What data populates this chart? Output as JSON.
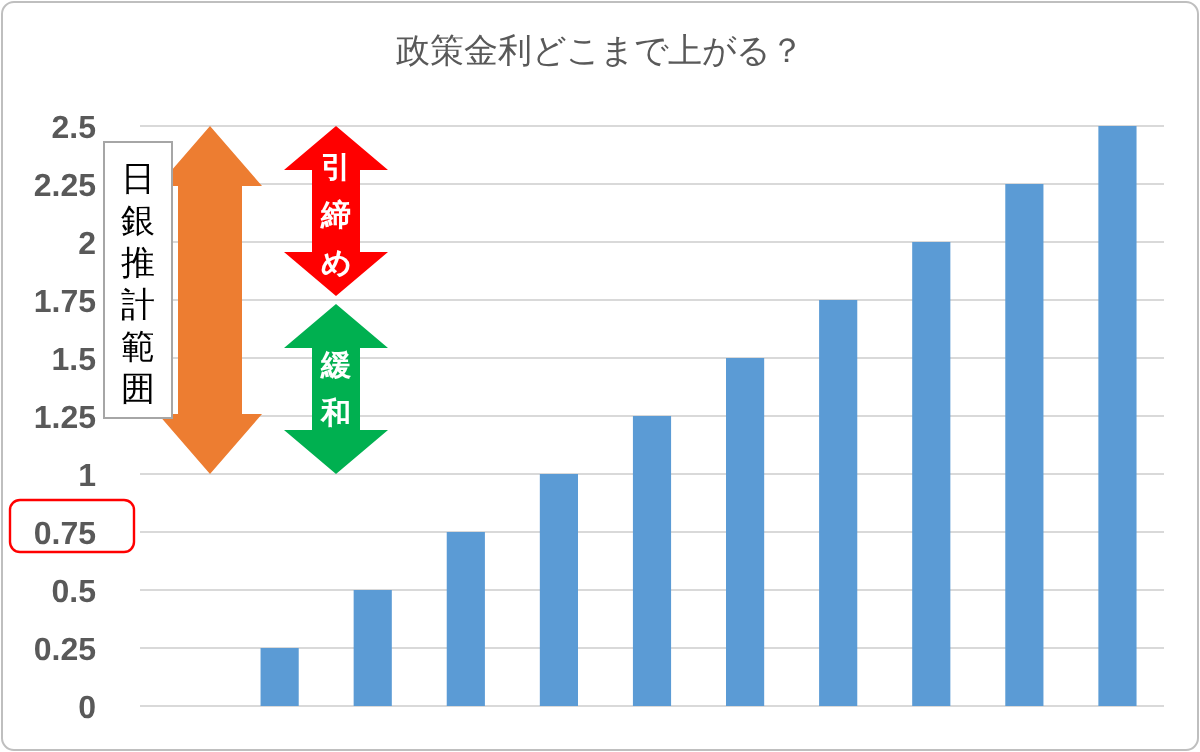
{
  "chart_data": {
    "type": "bar",
    "title": "政策金利どこまで上がる？",
    "categories": [
      null,
      null,
      null,
      null,
      null,
      null,
      null,
      null,
      null,
      null,
      null
    ],
    "values": [
      null,
      0.25,
      0.5,
      0.75,
      1,
      1.25,
      1.5,
      1.75,
      2,
      2.25,
      2.5
    ],
    "color": "#5b9bd5",
    "ylim": [
      0,
      2.5
    ],
    "yticks": [
      0,
      0.25,
      0.5,
      0.75,
      1,
      1.25,
      1.5,
      1.75,
      2,
      2.25,
      2.5
    ],
    "grid": "y",
    "annotations": [
      "日銀推計範囲",
      "引締め",
      "緩和"
    ]
  }
}
